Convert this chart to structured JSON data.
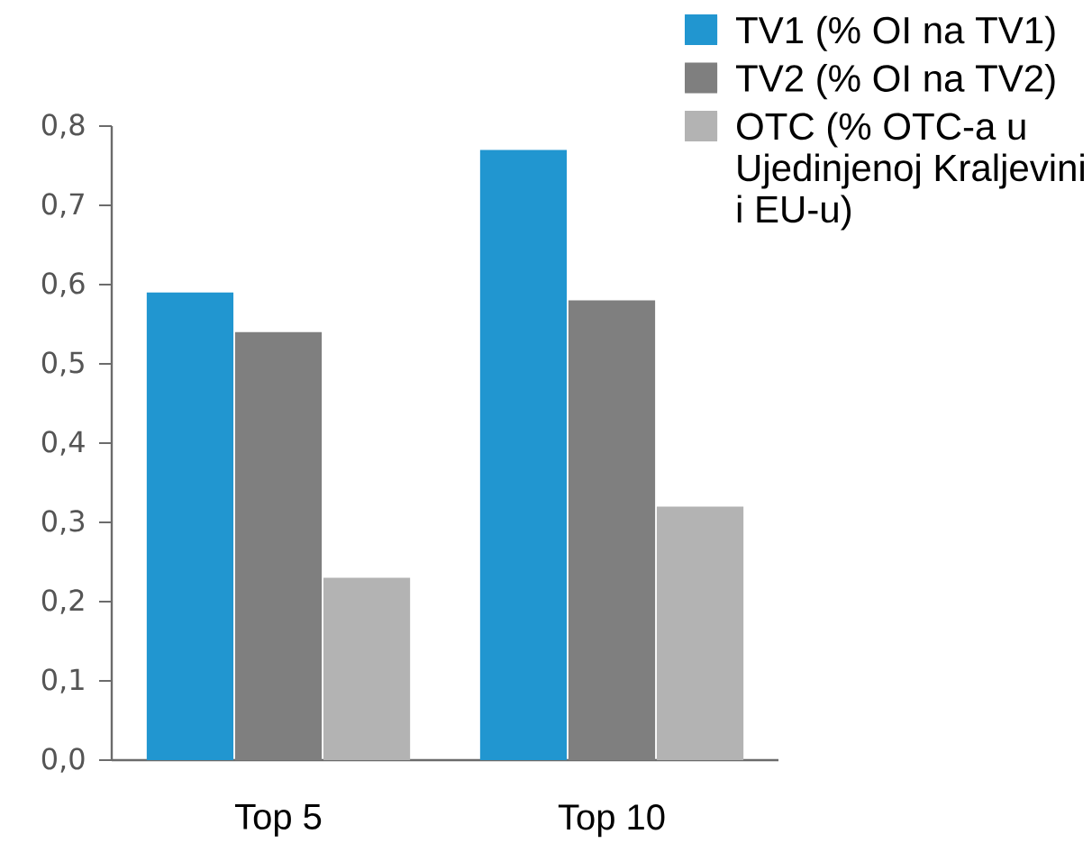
{
  "chart_data": {
    "type": "bar",
    "categories": [
      "Top 5",
      "Top 10"
    ],
    "series": [
      {
        "name": "TV1 (% OI na TV1)",
        "color": "#2196d0",
        "values": [
          0.59,
          0.77
        ]
      },
      {
        "name": "TV2 (% OI na TV2)",
        "color": "#7f7f7f",
        "values": [
          0.54,
          0.58
        ]
      },
      {
        "name": "OTC (% OTC-a u Ujedinjenoj Kraljevini i EU-u)",
        "color": "#b3b3b3",
        "values": [
          0.23,
          0.32
        ]
      }
    ],
    "ylim": [
      0,
      0.8
    ],
    "yticks": [
      {
        "value": 0,
        "label": "0,0"
      },
      {
        "value": 0.1,
        "label": "0,1"
      },
      {
        "value": 0.2,
        "label": "0,2"
      },
      {
        "value": 0.3,
        "label": "0,3"
      },
      {
        "value": 0.4,
        "label": "0,4"
      },
      {
        "value": 0.5,
        "label": "0,5"
      },
      {
        "value": 0.6,
        "label": "0,6"
      },
      {
        "value": 0.7,
        "label": "0,7"
      },
      {
        "value": 0.8,
        "label": "0,8"
      }
    ],
    "legend": "top right"
  }
}
